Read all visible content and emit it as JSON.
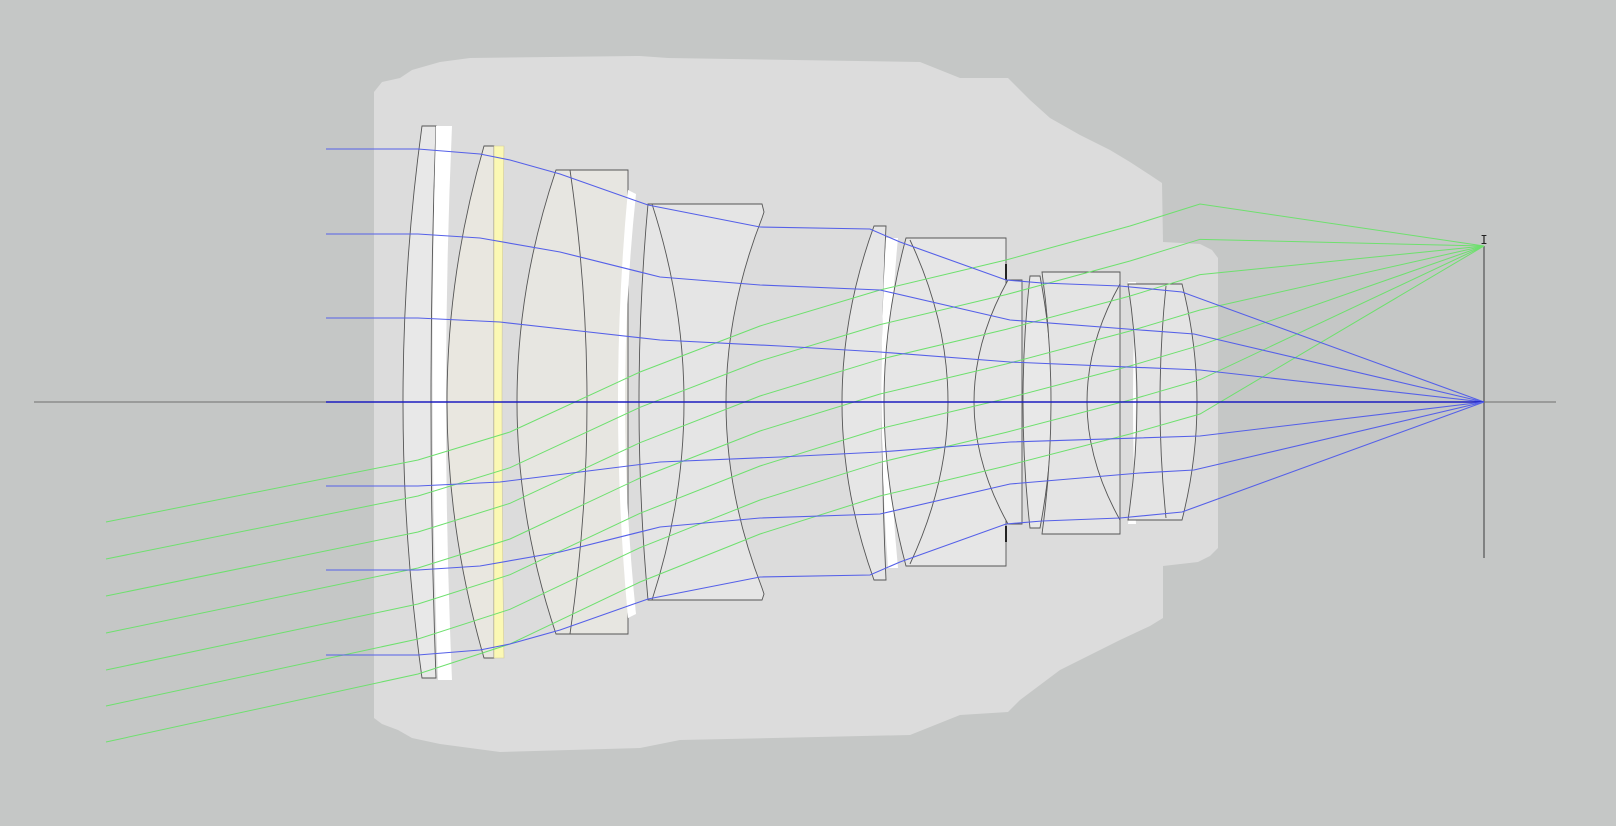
{
  "diagram": {
    "type": "optical-lens-ray-trace",
    "colors": {
      "background": "#c5c7c6",
      "barrel": "#dcdcdc",
      "barrel_inner": "#e2e2e2",
      "lens_stroke": "#5a5a5a",
      "lens_fill": "#e6e6e6",
      "lens_fill_tinted": "#e8e6df",
      "highlight_element": "#fbf8b4",
      "white_gap": "#ffffff",
      "axis": "#6a6a6a",
      "on_axis_rays": "#5560e8",
      "axis_ray": "#1d1dbf",
      "off_axis_rays": "#6ee06e",
      "image_plane": "#666666"
    },
    "lens_count": 11,
    "on_axis_ray_count": 7,
    "off_axis_ray_count": 7
  }
}
